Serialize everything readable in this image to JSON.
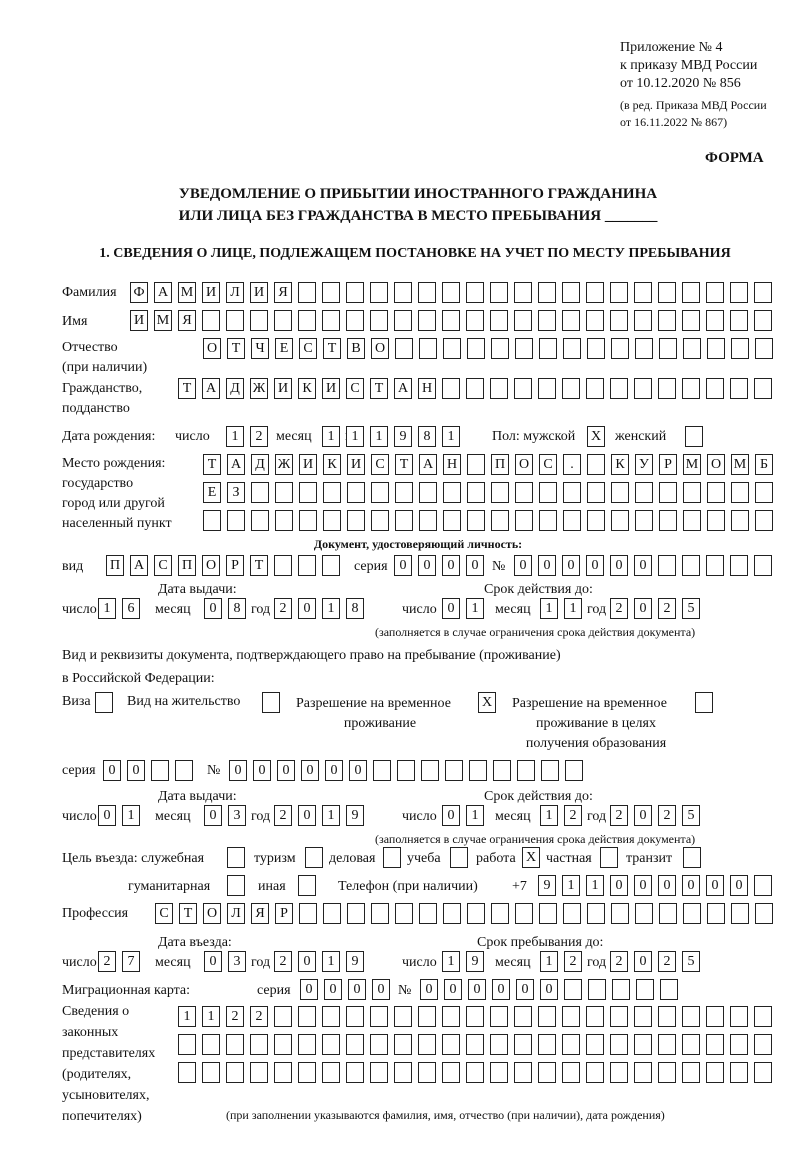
{
  "header": {
    "appendix": "Приложение № 4",
    "order": "к приказу МВД России",
    "date": "от 10.12.2020 № 856",
    "edition1": "(в ред. Приказа МВД России",
    "edition2": "от 16.11.2022 № 867)",
    "form": "ФОРМА",
    "title1": "УВЕДОМЛЕНИЕ О ПРИБЫТИИ ИНОСТРАННОГО ГРАЖДАНИНА",
    "title2": "ИЛИ ЛИЦА БЕЗ ГРАЖДАНСТВА В МЕСТО ПРЕБЫВАНИЯ _______",
    "section1": "1. СВЕДЕНИЯ О ЛИЦЕ, ПОДЛЕЖАЩЕМ ПОСТАНОВКЕ НА УЧЕТ ПО МЕСТУ ПРЕБЫВАНИЯ"
  },
  "labels": {
    "surname": "Фамилия",
    "name": "Имя",
    "patronymic1": "Отчество",
    "patronymic2": "(при наличии)",
    "citizenship1": "Гражданство,",
    "citizenship2": "подданство",
    "birth_date": "Дата рождения:",
    "day": "число",
    "month": "месяц",
    "year": "год",
    "sex": "Пол: мужской",
    "female": "женский",
    "birthplace1": "Место рождения:",
    "birthplace2": "государство",
    "birthplace3": "город или другой",
    "birthplace4": "населенный пункт",
    "id_doc": "Документ, удостоверяющий личность:",
    "kind": "вид",
    "series": "серия",
    "number": "№",
    "issue_date": "Дата выдачи:",
    "valid_until": "Срок действия до:",
    "validity_note": "(заполняется в случае ограничения срока действия документа)",
    "stay_doc1": "Вид и реквизиты документа, подтверждающего право на пребывание (проживание)",
    "stay_doc2": "в Российской Федерации:",
    "visa": "Виза",
    "residence": "Вид на жительство",
    "temp1": "Разрешение на временное",
    "temp2": "проживание",
    "edu1": "Разрешение на временное",
    "edu2": "проживание в целях",
    "edu3": "получения образования",
    "purpose": "Цель въезда: служебная",
    "tourism": "туризм",
    "business": "деловая",
    "study": "учеба",
    "work": "работа",
    "private": "частная",
    "transit": "транзит",
    "humanitarian": "гуманитарная",
    "other": "иная",
    "phone": "Телефон (при наличии)",
    "phone_prefix": "+7",
    "profession": "Профессия",
    "entry_date": "Дата въезда:",
    "stay_until": "Срок пребывания до:",
    "migration_card": "Миграционная карта:",
    "rep1": "Сведения о",
    "rep2": "законных",
    "rep3": "представителях",
    "rep4": "(родителях,",
    "rep5": "усыновителях,",
    "rep6": "попечителях)",
    "rep_note": "(при заполнении указываются фамилия, имя, отчество (при наличии), дата рождения)"
  },
  "fields": {
    "surname": {
      "chars": [
        "Ф",
        "А",
        "М",
        "И",
        "Л",
        "И",
        "Я"
      ],
      "total": 27
    },
    "name": {
      "chars": [
        "И",
        "М",
        "Я"
      ],
      "total": 27
    },
    "patronymic": {
      "chars": [
        "О",
        "Т",
        "Ч",
        "Е",
        "С",
        "Т",
        "В",
        "О"
      ],
      "total": 24
    },
    "citizenship": {
      "chars": [
        "Т",
        "А",
        "Д",
        "Ж",
        "И",
        "К",
        "И",
        "С",
        "Т",
        "А",
        "Н"
      ],
      "total": 25
    },
    "birth_day": {
      "chars": [
        "1",
        "2"
      ],
      "total": 2
    },
    "birth_month": {
      "chars": [
        "1",
        "1"
      ],
      "total": 2
    },
    "birth_year": {
      "chars": [
        "1",
        "9",
        "8",
        "1"
      ],
      "total": 4
    },
    "sex_male": {
      "chars": [
        "X"
      ],
      "total": 1
    },
    "sex_female": {
      "chars": [],
      "total": 1
    },
    "birthplace_1": {
      "chars": [
        "Т",
        "А",
        "Д",
        "Ж",
        "И",
        "К",
        "И",
        "С",
        "Т",
        "А",
        "Н",
        "",
        " П",
        "О",
        "С",
        ".",
        " ",
        "К",
        "У",
        "Р",
        "М",
        "О",
        "М",
        "Б"
      ],
      "total": 24
    },
    "birthplace_2": {
      "chars": [
        "Е",
        "З"
      ],
      "total": 24
    },
    "birthplace_3": {
      "chars": [],
      "total": 24
    },
    "id_kind": {
      "chars": [
        "П",
        "А",
        "С",
        "П",
        "О",
        "Р",
        "Т"
      ],
      "total": 10
    },
    "id_series": {
      "chars": [
        "0",
        "0",
        "0",
        "0"
      ],
      "total": 4
    },
    "id_number": {
      "chars": [
        "0",
        "0",
        "0",
        "0",
        "0",
        "0"
      ],
      "total": 11
    },
    "id_issue_day": {
      "chars": [
        "1",
        "6"
      ],
      "total": 2
    },
    "id_issue_month": {
      "chars": [
        "0",
        "8"
      ],
      "total": 2
    },
    "id_issue_year": {
      "chars": [
        "2",
        "0",
        "1",
        "8"
      ],
      "total": 4
    },
    "id_valid_day": {
      "chars": [
        "0",
        "1"
      ],
      "total": 2
    },
    "id_valid_month": {
      "chars": [
        "1",
        "1"
      ],
      "total": 2
    },
    "id_valid_year": {
      "chars": [
        "2",
        "0",
        "2",
        "5"
      ],
      "total": 4
    },
    "doc_visa": {
      "chars": [],
      "total": 1
    },
    "doc_residence": {
      "chars": [],
      "total": 1
    },
    "doc_temp": {
      "chars": [
        "X"
      ],
      "total": 1
    },
    "doc_edu": {
      "chars": [],
      "total": 1
    },
    "doc_series": {
      "chars": [
        "0",
        "0"
      ],
      "total": 4
    },
    "doc_number": {
      "chars": [
        "0",
        "0",
        "0",
        "0",
        "0",
        "0"
      ],
      "total": 15
    },
    "doc_issue_day": {
      "chars": [
        "0",
        "1"
      ],
      "total": 2
    },
    "doc_issue_month": {
      "chars": [
        "0",
        "3"
      ],
      "total": 2
    },
    "doc_issue_year": {
      "chars": [
        "2",
        "0",
        "1",
        "9"
      ],
      "total": 4
    },
    "doc_valid_day": {
      "chars": [
        "0",
        "1"
      ],
      "total": 2
    },
    "doc_valid_month": {
      "chars": [
        "1",
        "2"
      ],
      "total": 2
    },
    "doc_valid_year": {
      "chars": [
        "2",
        "0",
        "2",
        "5"
      ],
      "total": 4
    },
    "purpose_official": {
      "chars": [],
      "total": 1
    },
    "purpose_tourism": {
      "chars": [],
      "total": 1
    },
    "purpose_business": {
      "chars": [],
      "total": 1
    },
    "purpose_study": {
      "chars": [],
      "total": 1
    },
    "purpose_work": {
      "chars": [
        "X"
      ],
      "total": 1
    },
    "purpose_private": {
      "chars": [],
      "total": 1
    },
    "purpose_transit": {
      "chars": [],
      "total": 1
    },
    "purpose_humanitarian": {
      "chars": [],
      "total": 1
    },
    "purpose_other": {
      "chars": [],
      "total": 1
    },
    "phone": {
      "chars": [
        "9",
        "1",
        "1",
        "0",
        "0",
        "0",
        "0",
        "0",
        "0"
      ],
      "total": 10
    },
    "profession": {
      "chars": [
        "С",
        "Т",
        "О",
        "Л",
        "Я",
        "Р"
      ],
      "total": 26
    },
    "entry_day": {
      "chars": [
        "2",
        "7"
      ],
      "total": 2
    },
    "entry_month": {
      "chars": [
        "0",
        "3"
      ],
      "total": 2
    },
    "entry_year": {
      "chars": [
        "2",
        "0",
        "1",
        "9"
      ],
      "total": 4
    },
    "stay_day": {
      "chars": [
        "1",
        "9"
      ],
      "total": 2
    },
    "stay_month": {
      "chars": [
        "1",
        "2"
      ],
      "total": 2
    },
    "stay_year": {
      "chars": [
        "2",
        "0",
        "2",
        "5"
      ],
      "total": 4
    },
    "mc_series": {
      "chars": [
        "0",
        "0",
        "0",
        "0"
      ],
      "total": 4
    },
    "mc_number": {
      "chars": [
        "0",
        "0",
        "0",
        "0",
        "0",
        "0"
      ],
      "total": 11
    },
    "rep_1": {
      "chars": [
        "1",
        "1",
        "2",
        "2"
      ],
      "total": 25
    },
    "rep_2": {
      "chars": [],
      "total": 25
    },
    "rep_3": {
      "chars": [],
      "total": 25
    }
  }
}
